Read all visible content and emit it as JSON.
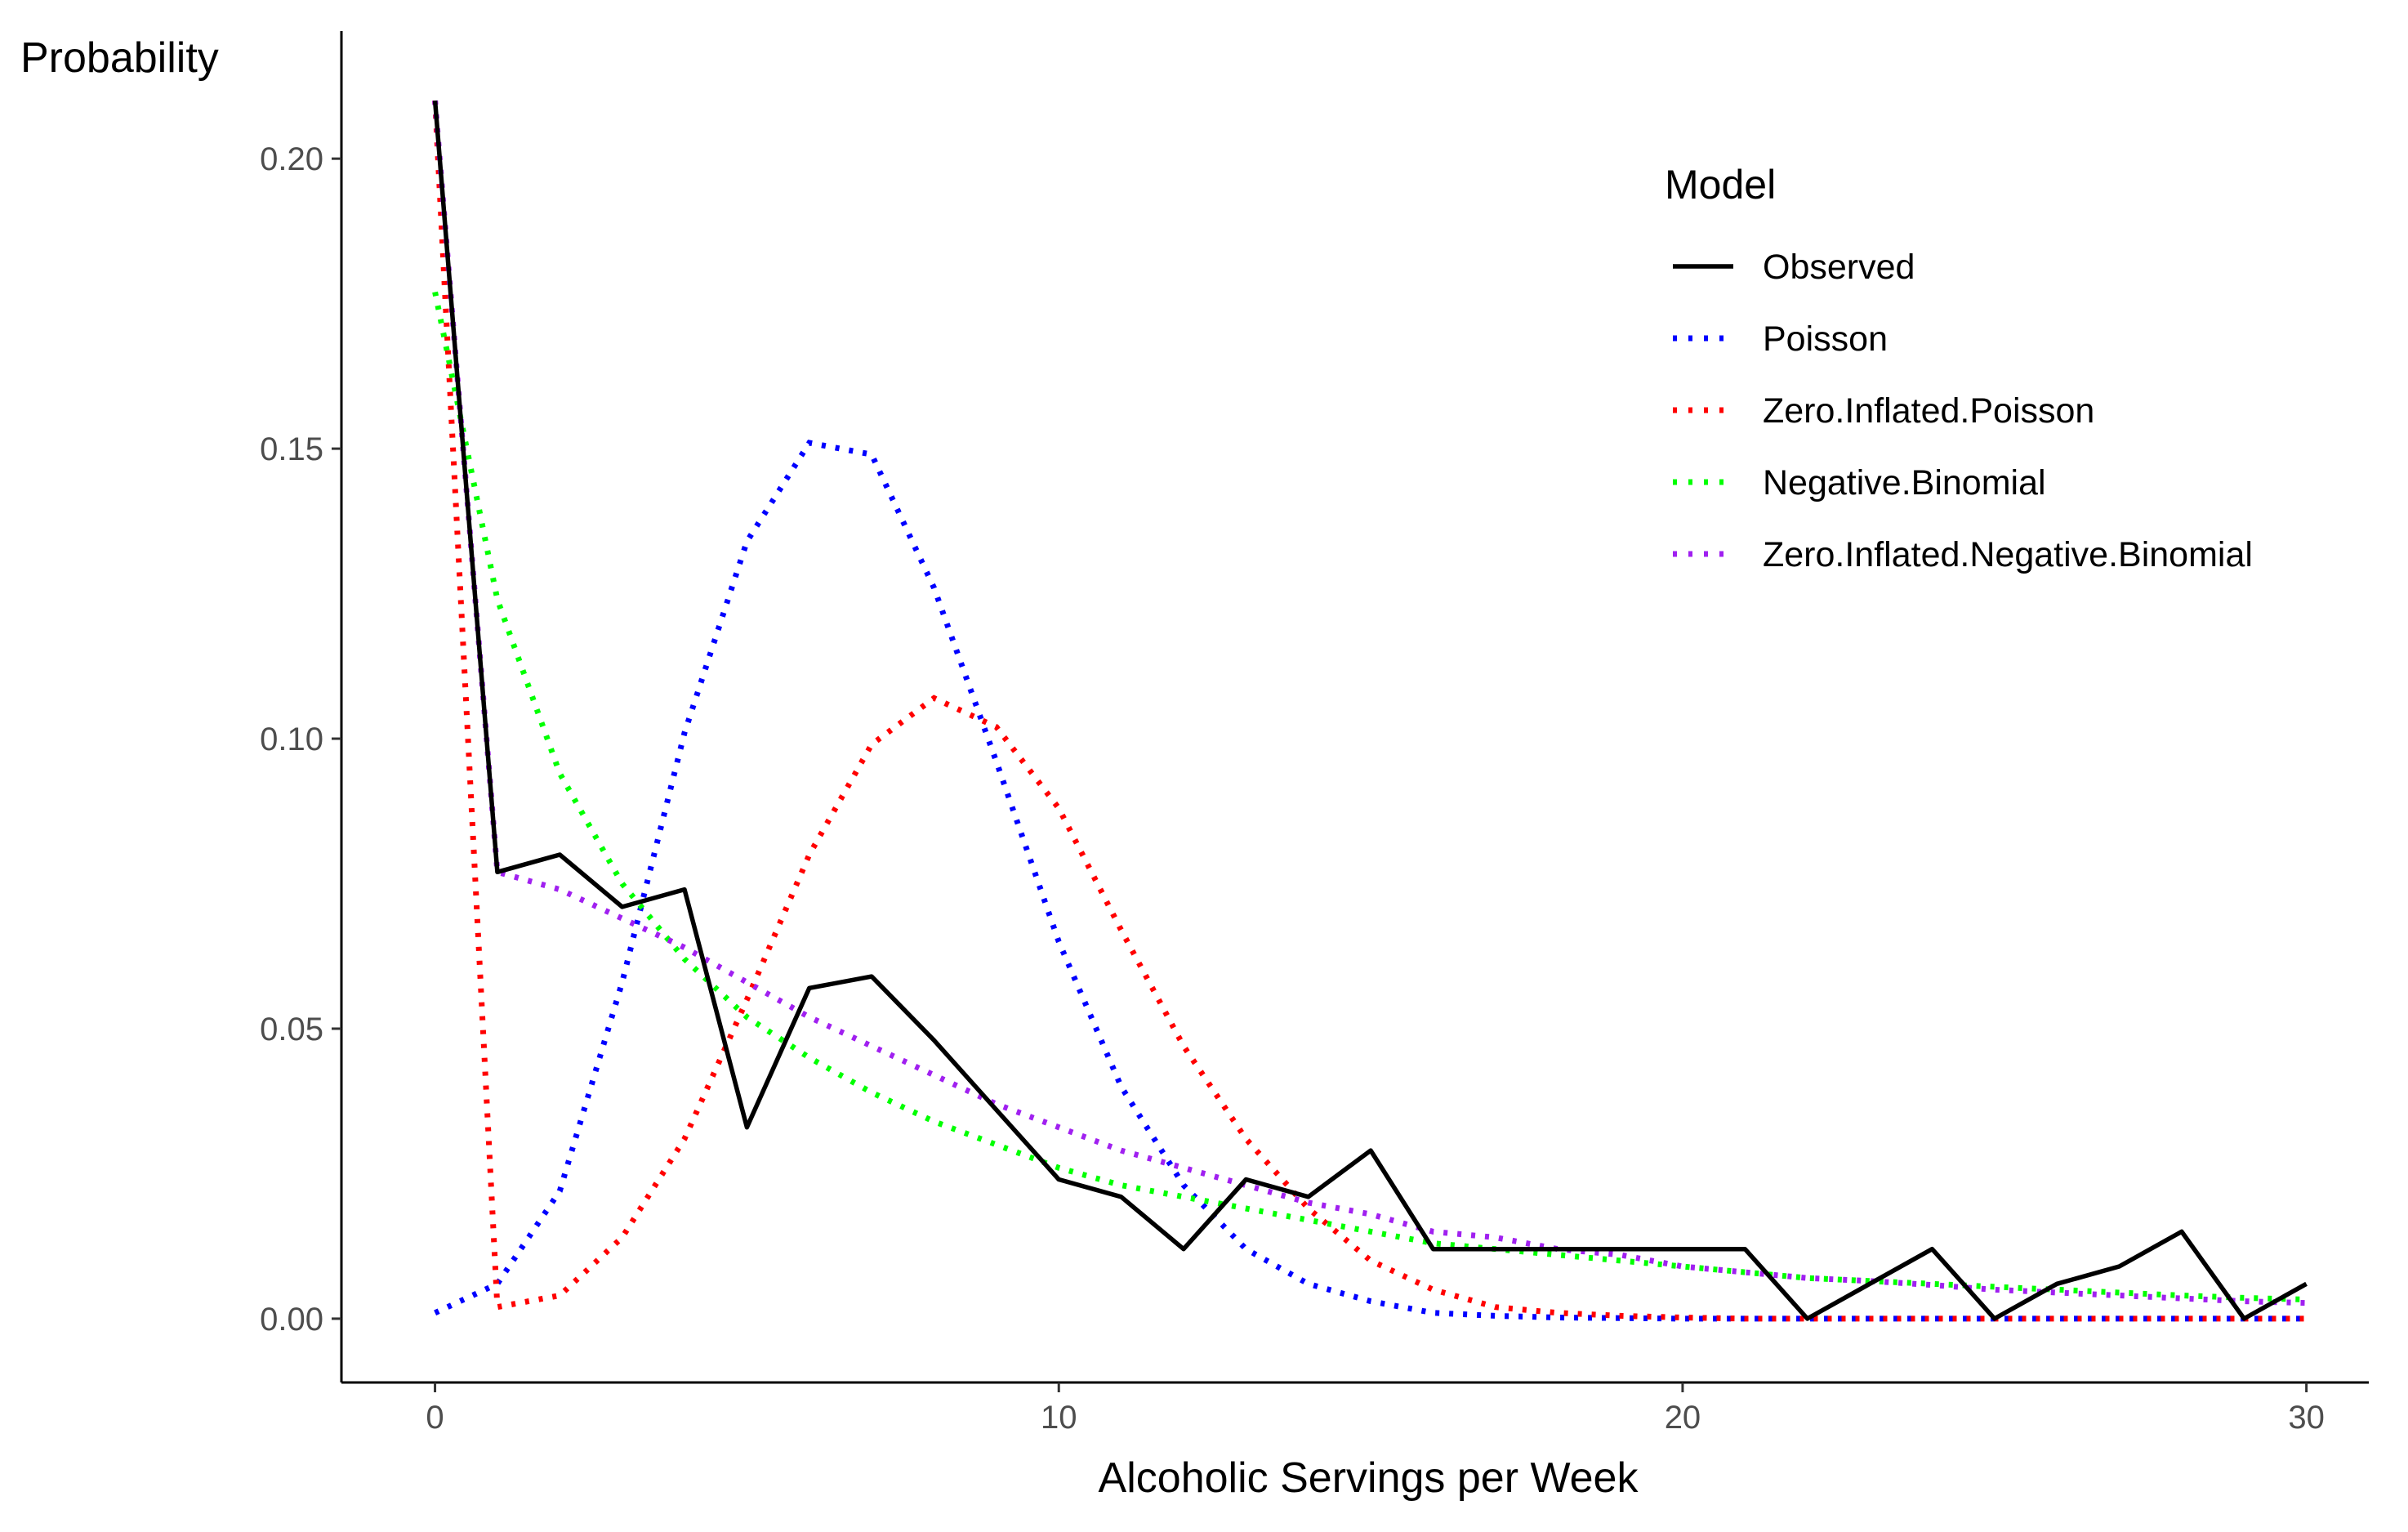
{
  "chart_data": {
    "type": "line",
    "title": "",
    "xlabel": "Alcoholic Servings per Week",
    "ylabel": "Probability",
    "xlim": [
      -1.5,
      31
    ],
    "ylim": [
      -0.011,
      0.222
    ],
    "xticks": [
      0,
      10,
      20,
      30
    ],
    "xtick_labels": [
      "0",
      "10",
      "20",
      "30"
    ],
    "yticks": [
      0.0,
      0.05,
      0.1,
      0.15,
      0.2
    ],
    "ytick_labels": [
      "0.00",
      "0.05",
      "0.10",
      "0.15",
      "0.20"
    ],
    "grid": false,
    "legend": {
      "title": "Model",
      "position": "top-right"
    },
    "x": [
      0,
      1,
      2,
      3,
      4,
      5,
      6,
      7,
      8,
      9,
      10,
      11,
      12,
      13,
      14,
      15,
      16,
      17,
      18,
      19,
      20,
      21,
      22,
      23,
      24,
      25,
      26,
      27,
      28,
      29,
      30
    ],
    "series": [
      {
        "name": "Observed",
        "color": "#000000",
        "style": "solid",
        "values": [
          0.21,
          0.077,
          0.08,
          0.071,
          0.074,
          0.033,
          0.057,
          0.059,
          0.048,
          0.036,
          0.024,
          0.021,
          0.012,
          0.024,
          0.021,
          0.029,
          0.012,
          0.012,
          0.012,
          0.012,
          0.012,
          0.012,
          0.0,
          0.006,
          0.012,
          0.0,
          0.006,
          0.009,
          0.015,
          0.0,
          0.006
        ]
      },
      {
        "name": "Poisson",
        "color": "#0000ff",
        "style": "dotted",
        "values": [
          0.001,
          0.006,
          0.022,
          0.058,
          0.101,
          0.134,
          0.151,
          0.149,
          0.126,
          0.096,
          0.065,
          0.04,
          0.023,
          0.012,
          0.006,
          0.003,
          0.001,
          0.0005,
          0.0002,
          0.0001,
          0.0,
          0.0,
          0.0,
          0.0,
          0.0,
          0.0,
          0.0,
          0.0,
          0.0,
          0.0,
          0.0
        ]
      },
      {
        "name": "Zero.Inflated.Poisson",
        "color": "#ff0000",
        "style": "dotted",
        "values": [
          0.21,
          0.002,
          0.004,
          0.014,
          0.031,
          0.055,
          0.08,
          0.099,
          0.107,
          0.102,
          0.088,
          0.067,
          0.047,
          0.031,
          0.019,
          0.01,
          0.005,
          0.002,
          0.001,
          0.0005,
          0.0002,
          0.0,
          0.0,
          0.0,
          0.0,
          0.0,
          0.0,
          0.0,
          0.0,
          0.0,
          0.0
        ]
      },
      {
        "name": "Negative.Binomial",
        "color": "#00ff00",
        "style": "dotted",
        "values": [
          0.177,
          0.124,
          0.094,
          0.075,
          0.062,
          0.052,
          0.045,
          0.039,
          0.034,
          0.03,
          0.026,
          0.023,
          0.021,
          0.019,
          0.017,
          0.015,
          0.013,
          0.012,
          0.011,
          0.01,
          0.009,
          0.008,
          0.007,
          0.0065,
          0.006,
          0.0055,
          0.005,
          0.0045,
          0.004,
          0.0036,
          0.0033
        ]
      },
      {
        "name": "Zero.Inflated.Negative.Binomial",
        "color": "#a020f0",
        "style": "dotted",
        "values": [
          0.21,
          0.077,
          0.074,
          0.069,
          0.064,
          0.058,
          0.052,
          0.047,
          0.042,
          0.037,
          0.033,
          0.029,
          0.026,
          0.023,
          0.02,
          0.018,
          0.015,
          0.014,
          0.012,
          0.011,
          0.009,
          0.008,
          0.007,
          0.0065,
          0.0058,
          0.005,
          0.0045,
          0.004,
          0.0035,
          0.003,
          0.0027
        ]
      }
    ]
  }
}
